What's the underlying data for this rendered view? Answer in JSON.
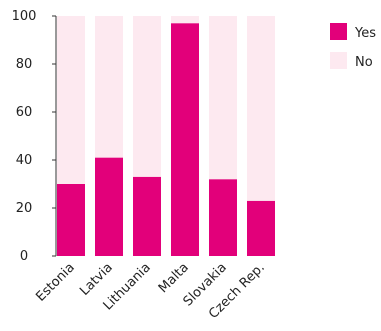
{
  "chart_data": {
    "type": "bar",
    "stacked": true,
    "categories": [
      "Estonia",
      "Latvia",
      "Lithuania",
      "Malta",
      "Slovakia",
      "Czech Rep."
    ],
    "series": [
      {
        "name": "Yes",
        "values": [
          30,
          41,
          33,
          97,
          32,
          23
        ]
      },
      {
        "name": "No",
        "values": [
          70,
          59,
          67,
          3,
          68,
          77
        ]
      }
    ],
    "ylim": [
      0,
      100
    ],
    "yticks": [
      "0",
      "20",
      "40",
      "60",
      "80",
      "100"
    ],
    "legend_position": "top-right",
    "grid": false,
    "colors": {
      "yes": "#e2007a",
      "no": "#fde9f0",
      "axis": "#333333"
    }
  }
}
